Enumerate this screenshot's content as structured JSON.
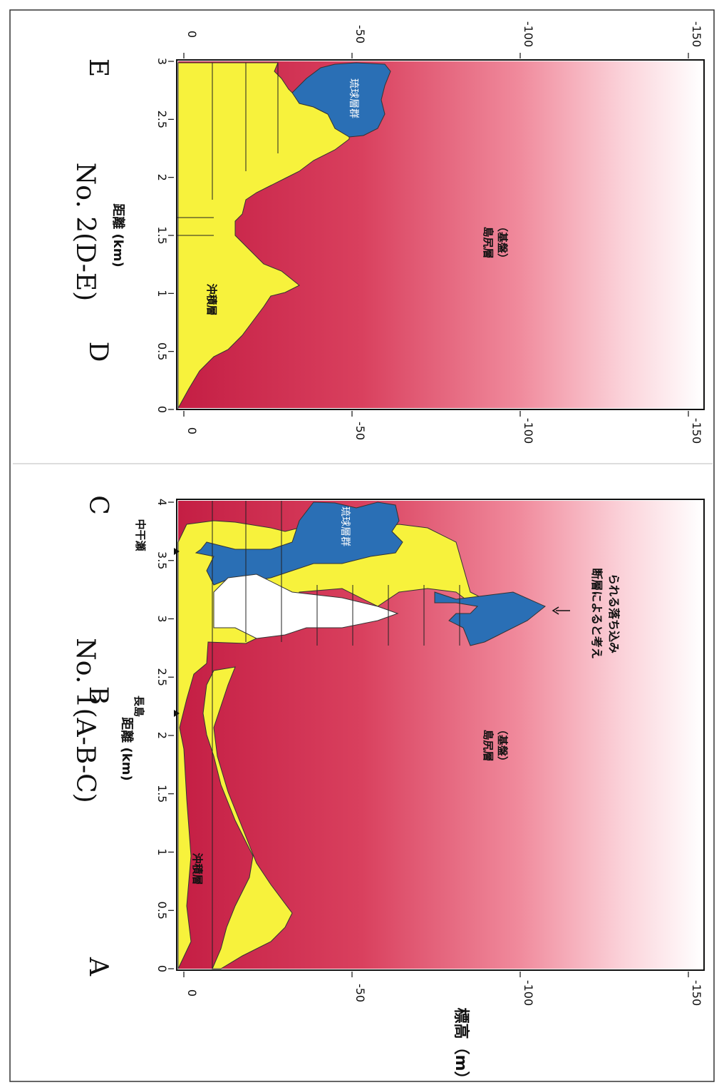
{
  "page": {
    "ylabel": "標高（m）"
  },
  "charts": [
    {
      "title": "No. 1(A-B-C)",
      "xlabel": "距離 (km)",
      "x_ticks": [
        "0",
        "0.5",
        "1",
        "1.5",
        "2",
        "2.5",
        "3",
        "3.5",
        "4"
      ],
      "y_ticks": [
        "0",
        "-50",
        "-100",
        "-150"
      ],
      "points": [
        "A",
        "B",
        "C"
      ],
      "place_labels": [
        "長島",
        "中干瀬"
      ],
      "layer_labels": {
        "alluvium": "沖積層",
        "ryukyu": "琉球層群",
        "basement_1": "島尻層",
        "basement_2": "（基盤）"
      },
      "annotation_1": "断層によると考え",
      "annotation_2": "られる落ち込み"
    },
    {
      "title": "No. 2(D-E)",
      "xlabel": "距離 (km)",
      "x_ticks": [
        "0",
        "0.5",
        "1",
        "1.5",
        "2",
        "2.5",
        "3"
      ],
      "y_ticks": [
        "0",
        "-50",
        "-100",
        "-150"
      ],
      "points": [
        "D",
        "E"
      ],
      "layer_labels": {
        "alluvium": "沖積層",
        "ryukyu": "琉球層群",
        "basement_1": "島尻層",
        "basement_2": "（基盤）"
      }
    }
  ],
  "chart_data": [
    {
      "type": "area",
      "title": "No. 1(A-B-C)",
      "xlabel": "距離 (km)",
      "ylabel": "標高（m）",
      "xlim": [
        0,
        4
      ],
      "ylim": [
        -150,
        0
      ],
      "series": [
        {
          "name": "沖積層",
          "x": [
            0,
            0.1,
            0.3,
            0.6,
            1.0,
            1.5,
            1.9,
            2.0,
            2.1,
            2.3,
            2.6,
            2.65,
            3.0,
            3.25,
            3.5,
            3.7,
            4.0
          ],
          "y": [
            -7,
            -6,
            -5,
            -4,
            -3,
            -3,
            -2,
            -1,
            -2,
            -4,
            -8,
            -10,
            -20,
            -1,
            -3,
            -2,
            -4
          ]
        },
        {
          "name": "琉球層群",
          "x": [
            2.6,
            2.8,
            3.0,
            3.1,
            3.25,
            3.3,
            3.5,
            3.6,
            3.8,
            4.0
          ],
          "y": [
            -100,
            -105,
            -108,
            -110,
            -98,
            -8,
            -15,
            -35,
            -40,
            -45
          ]
        },
        {
          "name": "島尻層（基盤）",
          "x": [
            0,
            0.3,
            0.5,
            0.8,
            1.0,
            1.3,
            1.6,
            1.9,
            2.0,
            2.2,
            2.5,
            2.65,
            3.25,
            3.5,
            4.0
          ],
          "y": [
            -10,
            -30,
            -40,
            -35,
            -25,
            -20,
            -12,
            -6,
            -3,
            -6,
            -15,
            -100,
            -110,
            -50,
            -65
          ]
        }
      ]
    },
    {
      "type": "area",
      "title": "No. 2(D-E)",
      "xlabel": "距離 (km)",
      "ylabel": "標高（m）",
      "xlim": [
        0,
        3
      ],
      "ylim": [
        -150,
        0
      ],
      "series": [
        {
          "name": "沖積層",
          "x": [
            0,
            0.5,
            1.0,
            1.5,
            1.8,
            2.0,
            2.2,
            2.5,
            2.8,
            3.0
          ],
          "y": [
            -1,
            -1,
            -1,
            -2,
            -3,
            -15,
            -25,
            -15,
            -10,
            -12
          ]
        },
        {
          "name": "琉球層群",
          "x": [
            2.3,
            2.5,
            2.7,
            2.9,
            3.0
          ],
          "y": [
            -45,
            -42,
            -38,
            -40,
            -42
          ]
        },
        {
          "name": "島尻層（基盤）",
          "x": [
            0,
            0.3,
            0.5,
            0.8,
            1.0,
            1.3,
            1.5,
            1.8,
            2.0,
            2.3,
            2.5,
            3.0
          ],
          "y": [
            0,
            -20,
            -32,
            -38,
            -50,
            -32,
            -42,
            -22,
            -18,
            -32,
            -45,
            -42
          ]
        }
      ]
    }
  ]
}
